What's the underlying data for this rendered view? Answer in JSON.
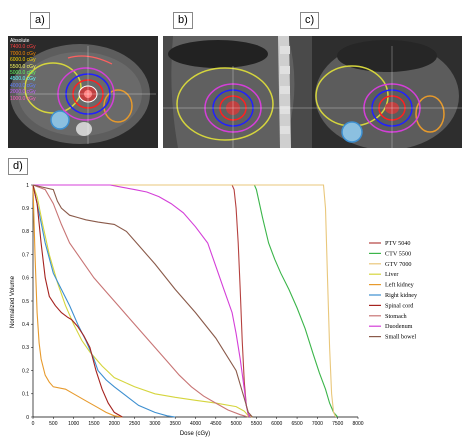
{
  "figure": {
    "panel_labels": [
      "a)",
      "b)",
      "c)",
      "d)"
    ],
    "ct_overlay": {
      "heading": "Absolute",
      "dose_lines": [
        "7400.0 cGy",
        "7000.0 cGy",
        "6000.0 cGy",
        "5500.0 cGy",
        "5000.0 cGy",
        "4500.0 cGy",
        "4000.0 cGy",
        "2000.0 cGy",
        "1000.0 cGy"
      ]
    },
    "colors": {
      "ptv": "#b5413f",
      "ctv": "#3bb54a",
      "gtv": "#e9c77b",
      "liver": "#d5d53d",
      "left_kidney": "#e79a2c",
      "right_kidney": "#3d8fd0",
      "spinal_cord": "#a5231f",
      "stomach": "#c87575",
      "duodenum": "#d43fd8",
      "small_bowel": "#8a5a4a"
    }
  },
  "chart_data": {
    "type": "line",
    "xlabel": "Dose (cGy)",
    "ylabel": "Normalized Volume",
    "xlim": [
      0,
      8000
    ],
    "ylim": [
      0,
      1
    ],
    "x_ticks": [
      "0",
      "500",
      "1000",
      "1500",
      "2000",
      "2500",
      "3000",
      "3500",
      "4000",
      "4500",
      "5000",
      "5500",
      "6000",
      "6500",
      "7000",
      "7500",
      "8000"
    ],
    "y_ticks": [
      "0",
      "0.1",
      "0.2",
      "0.3",
      "0.4",
      "0.5",
      "0.6",
      "0.7",
      "0.8",
      "0.9",
      "1"
    ],
    "legend_position": "right",
    "grid": false,
    "series": [
      {
        "name": "PTV 5040",
        "key": "ptv",
        "points": [
          [
            0,
            1
          ],
          [
            4900,
            1
          ],
          [
            4950,
            0.98
          ],
          [
            5000,
            0.9
          ],
          [
            5050,
            0.75
          ],
          [
            5100,
            0.55
          ],
          [
            5150,
            0.33
          ],
          [
            5200,
            0.15
          ],
          [
            5250,
            0.05
          ],
          [
            5300,
            0.01
          ],
          [
            5400,
            0
          ]
        ]
      },
      {
        "name": "CTV 5500",
        "key": "ctv",
        "points": [
          [
            0,
            1
          ],
          [
            5450,
            1
          ],
          [
            5500,
            0.98
          ],
          [
            5650,
            0.86
          ],
          [
            5800,
            0.75
          ],
          [
            5950,
            0.68
          ],
          [
            6100,
            0.62
          ],
          [
            6300,
            0.55
          ],
          [
            6500,
            0.47
          ],
          [
            6700,
            0.38
          ],
          [
            6900,
            0.27
          ],
          [
            7050,
            0.19
          ],
          [
            7200,
            0.12
          ],
          [
            7300,
            0.06
          ],
          [
            7400,
            0.02
          ],
          [
            7500,
            0
          ]
        ]
      },
      {
        "name": "GTV 7000",
        "key": "gtv",
        "points": [
          [
            0,
            1
          ],
          [
            7150,
            1
          ],
          [
            7200,
            0.9
          ],
          [
            7250,
            0.6
          ],
          [
            7300,
            0.3
          ],
          [
            7350,
            0.1
          ],
          [
            7400,
            0.02
          ],
          [
            7450,
            0
          ]
        ]
      },
      {
        "name": "Liver",
        "key": "liver",
        "points": [
          [
            0,
            1
          ],
          [
            100,
            0.95
          ],
          [
            250,
            0.82
          ],
          [
            400,
            0.7
          ],
          [
            600,
            0.58
          ],
          [
            800,
            0.48
          ],
          [
            1000,
            0.4
          ],
          [
            1200,
            0.33
          ],
          [
            1400,
            0.28
          ],
          [
            1700,
            0.22
          ],
          [
            2000,
            0.17
          ],
          [
            2500,
            0.13
          ],
          [
            3000,
            0.1
          ],
          [
            3500,
            0.085
          ],
          [
            4000,
            0.072
          ],
          [
            4500,
            0.06
          ],
          [
            5000,
            0.045
          ],
          [
            5200,
            0.025
          ],
          [
            5300,
            0.005
          ],
          [
            5400,
            0
          ]
        ]
      },
      {
        "name": "Left kidney",
        "key": "left_kidney",
        "points": [
          [
            0,
            1
          ],
          [
            50,
            0.7
          ],
          [
            100,
            0.45
          ],
          [
            150,
            0.32
          ],
          [
            200,
            0.25
          ],
          [
            300,
            0.18
          ],
          [
            400,
            0.15
          ],
          [
            500,
            0.13
          ],
          [
            800,
            0.12
          ],
          [
            1000,
            0.1
          ],
          [
            1300,
            0.07
          ],
          [
            1600,
            0.04
          ],
          [
            1800,
            0.02
          ],
          [
            2000,
            0.005
          ],
          [
            2200,
            0
          ]
        ]
      },
      {
        "name": "Right kidney",
        "key": "right_kidney",
        "points": [
          [
            0,
            1
          ],
          [
            150,
            0.88
          ],
          [
            300,
            0.75
          ],
          [
            500,
            0.62
          ],
          [
            700,
            0.55
          ],
          [
            900,
            0.48
          ],
          [
            1100,
            0.4
          ],
          [
            1300,
            0.33
          ],
          [
            1500,
            0.25
          ],
          [
            1600,
            0.2
          ],
          [
            1800,
            0.16
          ],
          [
            2000,
            0.13
          ],
          [
            2300,
            0.09
          ],
          [
            2600,
            0.05
          ],
          [
            3000,
            0.02
          ],
          [
            3300,
            0.005
          ],
          [
            3500,
            0
          ]
        ]
      },
      {
        "name": "Spinal cord",
        "key": "spinal_cord",
        "points": [
          [
            0,
            1
          ],
          [
            100,
            0.92
          ],
          [
            200,
            0.75
          ],
          [
            300,
            0.6
          ],
          [
            400,
            0.52
          ],
          [
            550,
            0.48
          ],
          [
            700,
            0.45
          ],
          [
            850,
            0.43
          ],
          [
            950,
            0.42
          ],
          [
            1000,
            0.41
          ],
          [
            1100,
            0.39
          ],
          [
            1250,
            0.35
          ],
          [
            1400,
            0.3
          ],
          [
            1550,
            0.2
          ],
          [
            1700,
            0.12
          ],
          [
            1850,
            0.06
          ],
          [
            2000,
            0.02
          ],
          [
            2200,
            0
          ]
        ]
      },
      {
        "name": "Stomach",
        "key": "stomach",
        "points": [
          [
            0,
            1
          ],
          [
            300,
            0.98
          ],
          [
            500,
            0.92
          ],
          [
            700,
            0.83
          ],
          [
            900,
            0.75
          ],
          [
            1100,
            0.7
          ],
          [
            1300,
            0.65
          ],
          [
            1500,
            0.6
          ],
          [
            1800,
            0.54
          ],
          [
            2100,
            0.48
          ],
          [
            2400,
            0.42
          ],
          [
            2700,
            0.36
          ],
          [
            3000,
            0.3
          ],
          [
            3300,
            0.24
          ],
          [
            3600,
            0.18
          ],
          [
            3900,
            0.13
          ],
          [
            4200,
            0.09
          ],
          [
            4500,
            0.06
          ],
          [
            4800,
            0.03
          ],
          [
            5100,
            0.01
          ],
          [
            5300,
            0
          ]
        ]
      },
      {
        "name": "Duodenum",
        "key": "duodenum",
        "points": [
          [
            0,
            1
          ],
          [
            1900,
            1
          ],
          [
            2200,
            0.99
          ],
          [
            2500,
            0.98
          ],
          [
            2800,
            0.97
          ],
          [
            3100,
            0.95
          ],
          [
            3400,
            0.92
          ],
          [
            3700,
            0.88
          ],
          [
            4000,
            0.82
          ],
          [
            4300,
            0.75
          ],
          [
            4500,
            0.65
          ],
          [
            4700,
            0.55
          ],
          [
            4900,
            0.45
          ],
          [
            5000,
            0.36
          ],
          [
            5100,
            0.25
          ],
          [
            5200,
            0.12
          ],
          [
            5250,
            0.05
          ],
          [
            5300,
            0.01
          ],
          [
            5350,
            0
          ]
        ]
      },
      {
        "name": "Small bowel",
        "key": "small_bowel",
        "points": [
          [
            0,
            1
          ],
          [
            500,
            0.98
          ],
          [
            600,
            0.93
          ],
          [
            700,
            0.9
          ],
          [
            900,
            0.87
          ],
          [
            1100,
            0.86
          ],
          [
            1300,
            0.85
          ],
          [
            1600,
            0.84
          ],
          [
            2000,
            0.83
          ],
          [
            2300,
            0.8
          ],
          [
            2600,
            0.74
          ],
          [
            3000,
            0.66
          ],
          [
            3500,
            0.55
          ],
          [
            4000,
            0.45
          ],
          [
            4500,
            0.34
          ],
          [
            5000,
            0.2
          ],
          [
            5200,
            0.08
          ],
          [
            5300,
            0.02
          ],
          [
            5400,
            0
          ]
        ]
      }
    ]
  }
}
